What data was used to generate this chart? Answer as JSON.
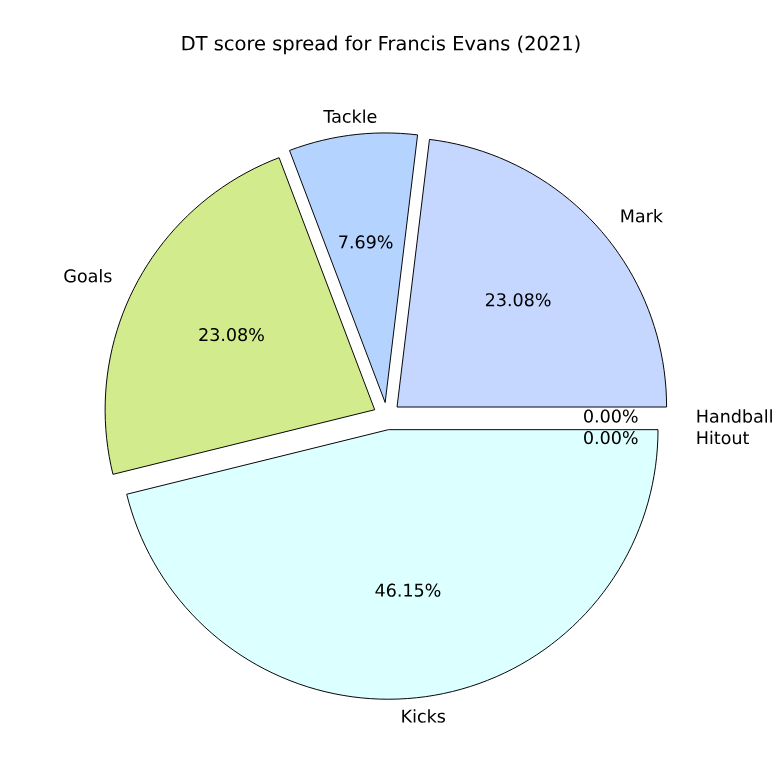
{
  "chart_data": {
    "type": "pie",
    "title": "DT score spread for Francis Evans (2021)",
    "categories": [
      "Mark",
      "Tackle",
      "Goals",
      "Kicks",
      "Handball",
      "Hitout"
    ],
    "values": [
      23.08,
      7.69,
      23.08,
      46.15,
      0,
      0
    ],
    "value_labels": [
      "23.08%",
      "7.69%",
      "23.08%",
      "46.15%",
      "0.00%",
      "0.00%"
    ],
    "colors": [
      "#c5d6ff",
      "#b4d4ff",
      "#d2eb8c",
      "#dcffff",
      "#c5d6ff",
      "#b4d4ff"
    ]
  }
}
